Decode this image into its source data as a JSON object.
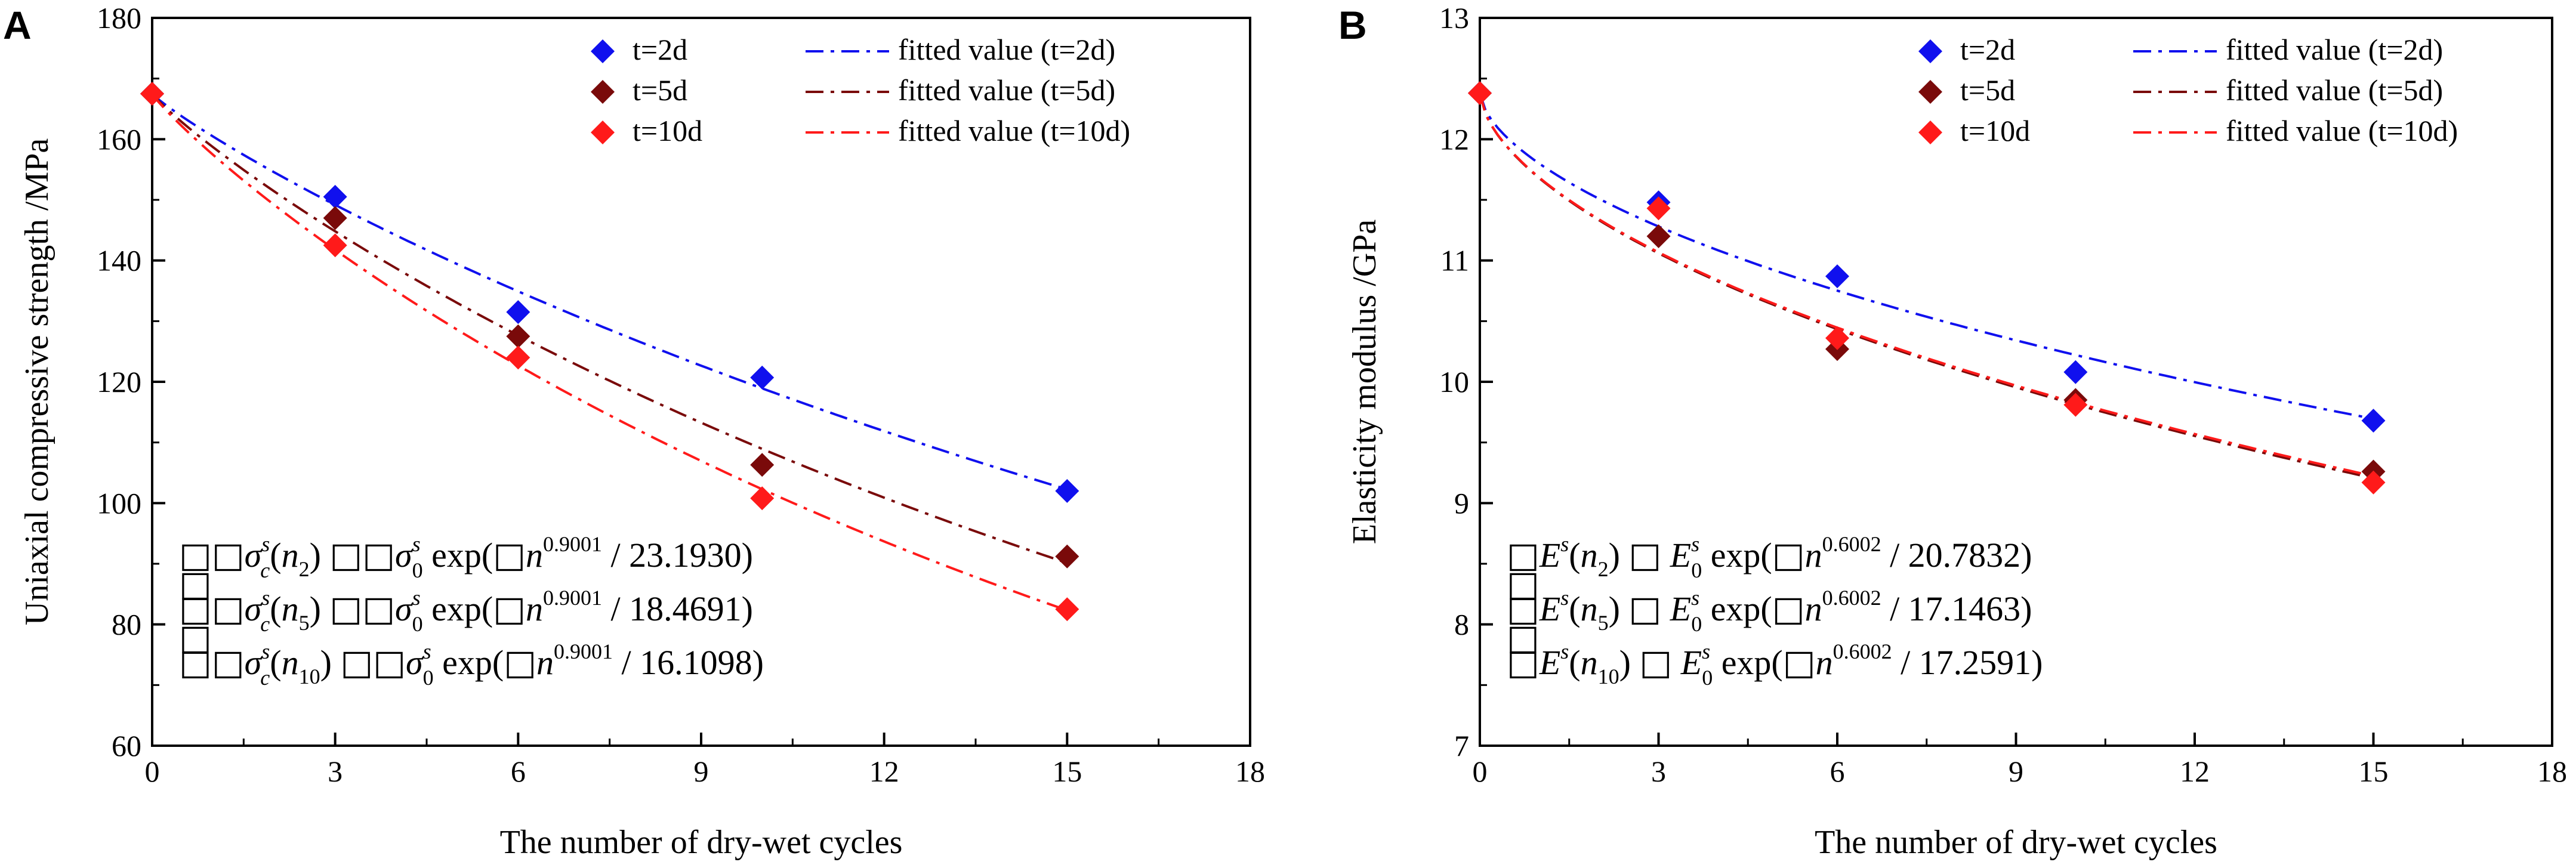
{
  "chart_data": [
    {
      "type": "scatter",
      "panel_label": "A",
      "xlabel": "The number of dry-wet cycles",
      "ylabel": "Uniaxial compressive strength /MPa",
      "xlim": [
        0,
        18
      ],
      "ylim": [
        60,
        180
      ],
      "xticks": [
        "0",
        "3",
        "6",
        "9",
        "12",
        "15",
        "18"
      ],
      "yticks": [
        "60",
        "80",
        "100",
        "120",
        "140",
        "160",
        "180"
      ],
      "x": [
        0,
        3,
        6,
        10,
        15
      ],
      "series": [
        {
          "name": "t=2d",
          "color": "#1010ee",
          "values": [
            167.5,
            150.5,
            131.5,
            120.7,
            102.0
          ]
        },
        {
          "name": "t=5d",
          "color": "#7a0a0a",
          "values": [
            167.5,
            147.0,
            127.5,
            106.3,
            91.2
          ]
        },
        {
          "name": "t=10d",
          "color": "#ff1a1a",
          "values": [
            167.5,
            142.5,
            124.0,
            100.8,
            82.5
          ]
        }
      ],
      "fits": [
        {
          "name": "fitted value (t=2d)",
          "color": "#1010ee",
          "y0": 167.5,
          "exp": 0.9001,
          "k": 23.193
        },
        {
          "name": "fitted value (t=5d)",
          "color": "#7a0a0a",
          "y0": 167.5,
          "exp": 0.9001,
          "k": 18.4691
        },
        {
          "name": "fitted value (t=10d)",
          "color": "#ff1a1a",
          "y0": 167.5,
          "exp": 0.9001,
          "k": 16.1098
        }
      ],
      "equations": [
        {
          "lhs_var": "σ",
          "lhs_sub": "c",
          "sup": "s",
          "arg_base": "n",
          "arg_sub": "2",
          "rhs_var": "σ",
          "rhs_sub": "0",
          "n_exp": "0.9001",
          "divisor": "23.1930"
        },
        {
          "lhs_var": "σ",
          "lhs_sub": "c",
          "sup": "s",
          "arg_base": "n",
          "arg_sub": "5",
          "rhs_var": "σ",
          "rhs_sub": "0",
          "n_exp": "0.9001",
          "divisor": "18.4691"
        },
        {
          "lhs_var": "σ",
          "lhs_sub": "c",
          "sup": "s",
          "arg_base": "n",
          "arg_sub": "10",
          "rhs_var": "σ",
          "rhs_sub": "0",
          "n_exp": "0.9001",
          "divisor": "16.1098"
        }
      ]
    },
    {
      "type": "scatter",
      "panel_label": "B",
      "xlabel": "The number of dry-wet cycles",
      "ylabel": "Elasticity modulus /GPa",
      "xlim": [
        0,
        18
      ],
      "ylim": [
        7,
        13
      ],
      "xticks": [
        "0",
        "3",
        "6",
        "9",
        "12",
        "15",
        "18"
      ],
      "yticks": [
        "7",
        "8",
        "9",
        "10",
        "11",
        "12",
        "13"
      ],
      "x": [
        0,
        3,
        6,
        10,
        15
      ],
      "series": [
        {
          "name": "t=2d",
          "color": "#1010ee",
          "values": [
            12.38,
            11.48,
            10.87,
            10.08,
            9.68
          ]
        },
        {
          "name": "t=5d",
          "color": "#7a0a0a",
          "values": [
            12.38,
            11.2,
            10.27,
            9.85,
            9.26
          ]
        },
        {
          "name": "t=10d",
          "color": "#ff1a1a",
          "values": [
            12.38,
            11.43,
            10.36,
            9.81,
            9.17
          ]
        }
      ],
      "fits": [
        {
          "name": "fitted value (t=2d)",
          "color": "#1010ee",
          "y0": 12.38,
          "exp": 0.6002,
          "k": 20.7832
        },
        {
          "name": "fitted value (t=5d)",
          "color": "#7a0a0a",
          "y0": 12.38,
          "exp": 0.6002,
          "k": 17.1463
        },
        {
          "name": "fitted value (t=10d)",
          "color": "#ff1a1a",
          "y0": 12.38,
          "exp": 0.6002,
          "k": 17.2591
        }
      ],
      "equations": [
        {
          "lhs_var": "E",
          "lhs_sub": "",
          "sup": "s",
          "arg_base": "n",
          "arg_sub": "2",
          "rhs_var": "E",
          "rhs_sub": "0",
          "n_exp": "0.6002",
          "divisor": "20.7832"
        },
        {
          "lhs_var": "E",
          "lhs_sub": "",
          "sup": "s",
          "arg_base": "n",
          "arg_sub": "5",
          "rhs_var": "E",
          "rhs_sub": "0",
          "n_exp": "0.6002",
          "divisor": "17.1463"
        },
        {
          "lhs_var": "E",
          "lhs_sub": "",
          "sup": "s",
          "arg_base": "n",
          "arg_sub": "10",
          "rhs_var": "E",
          "rhs_sub": "0",
          "n_exp": "0.6002",
          "divisor": "17.2591"
        }
      ]
    }
  ]
}
